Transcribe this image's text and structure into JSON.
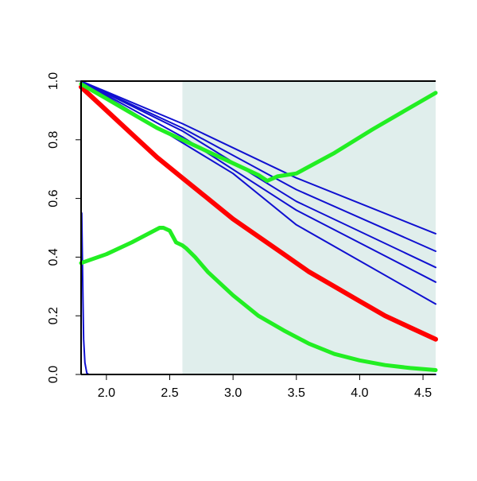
{
  "chart_data": {
    "type": "line",
    "title": "",
    "xlabel": "",
    "ylabel": "",
    "xlim": [
      1.8,
      4.6
    ],
    "ylim": [
      0,
      1
    ],
    "x_ticks": [
      "2.0",
      "2.5",
      "3.0",
      "3.5",
      "4.0",
      "4.5"
    ],
    "y_ticks": [
      "0.0",
      "0.2",
      "0.4",
      "0.6",
      "0.8",
      "1.0"
    ],
    "grid": false,
    "legend": "none",
    "shaded_region": {
      "x_from": 2.6,
      "x_to": 4.6,
      "color": "#e0eeec"
    },
    "series": [
      {
        "color": "#ff0000",
        "stroke_width": 6,
        "points": [
          [
            1.8,
            0.98
          ],
          [
            2.0,
            0.9
          ],
          [
            2.2,
            0.82
          ],
          [
            2.4,
            0.74
          ],
          [
            2.6,
            0.67
          ],
          [
            2.8,
            0.6
          ],
          [
            3.0,
            0.53
          ],
          [
            3.2,
            0.47
          ],
          [
            3.4,
            0.41
          ],
          [
            3.6,
            0.35
          ],
          [
            3.8,
            0.3
          ],
          [
            4.0,
            0.25
          ],
          [
            4.2,
            0.2
          ],
          [
            4.4,
            0.16
          ],
          [
            4.6,
            0.12
          ]
        ]
      },
      {
        "color": "#1010d0",
        "stroke_width": 2,
        "points": [
          [
            1.8,
            1.0
          ],
          [
            2.6,
            0.855
          ],
          [
            3.5,
            0.67
          ],
          [
            4.6,
            0.48
          ]
        ]
      },
      {
        "color": "#1010d0",
        "stroke_width": 2,
        "points": [
          [
            1.8,
            1.0
          ],
          [
            2.6,
            0.84
          ],
          [
            3.5,
            0.63
          ],
          [
            4.6,
            0.42
          ]
        ]
      },
      {
        "color": "#1010d0",
        "stroke_width": 2,
        "points": [
          [
            1.8,
            1.0
          ],
          [
            2.6,
            0.83
          ],
          [
            3.5,
            0.59
          ],
          [
            4.6,
            0.365
          ]
        ]
      },
      {
        "color": "#1010d0",
        "stroke_width": 2,
        "points": [
          [
            1.8,
            1.0
          ],
          [
            2.6,
            0.81
          ],
          [
            3.5,
            0.56
          ],
          [
            4.6,
            0.315
          ]
        ]
      },
      {
        "color": "#1010d0",
        "stroke_width": 2,
        "points": [
          [
            1.8,
            1.0
          ],
          [
            2.6,
            0.79
          ],
          [
            3.0,
            0.685
          ],
          [
            3.5,
            0.51
          ],
          [
            4.6,
            0.24
          ]
        ]
      },
      {
        "color": "#1010d0",
        "stroke_width": 2,
        "points": [
          [
            1.805,
            0.55
          ],
          [
            1.81,
            0.4
          ],
          [
            1.815,
            0.25
          ],
          [
            1.82,
            0.12
          ],
          [
            1.83,
            0.04
          ],
          [
            1.845,
            0.005
          ],
          [
            1.86,
            0.0
          ],
          [
            4.6,
            0.0
          ]
        ]
      },
      {
        "color": "#22ee22",
        "stroke_width": 5,
        "points": [
          [
            1.8,
            0.99
          ],
          [
            2.0,
            0.94
          ],
          [
            2.2,
            0.89
          ],
          [
            2.4,
            0.84
          ],
          [
            2.6,
            0.8
          ],
          [
            2.8,
            0.76
          ],
          [
            3.0,
            0.72
          ],
          [
            3.2,
            0.68
          ],
          [
            3.27,
            0.66
          ],
          [
            3.35,
            0.675
          ],
          [
            3.5,
            0.685
          ],
          [
            3.8,
            0.755
          ],
          [
            4.1,
            0.835
          ],
          [
            4.4,
            0.91
          ],
          [
            4.6,
            0.96
          ]
        ]
      },
      {
        "color": "#22ee22",
        "stroke_width": 5,
        "points": [
          [
            1.8,
            0.38
          ],
          [
            2.0,
            0.41
          ],
          [
            2.2,
            0.45
          ],
          [
            2.42,
            0.5
          ],
          [
            2.45,
            0.5
          ],
          [
            2.5,
            0.49
          ],
          [
            2.55,
            0.45
          ],
          [
            2.6,
            0.44
          ],
          [
            2.63,
            0.43
          ],
          [
            2.7,
            0.4
          ],
          [
            2.8,
            0.35
          ],
          [
            3.0,
            0.27
          ],
          [
            3.2,
            0.2
          ],
          [
            3.4,
            0.15
          ],
          [
            3.6,
            0.105
          ],
          [
            3.8,
            0.07
          ],
          [
            4.0,
            0.048
          ],
          [
            4.2,
            0.032
          ],
          [
            4.4,
            0.022
          ],
          [
            4.6,
            0.015
          ]
        ]
      }
    ]
  }
}
